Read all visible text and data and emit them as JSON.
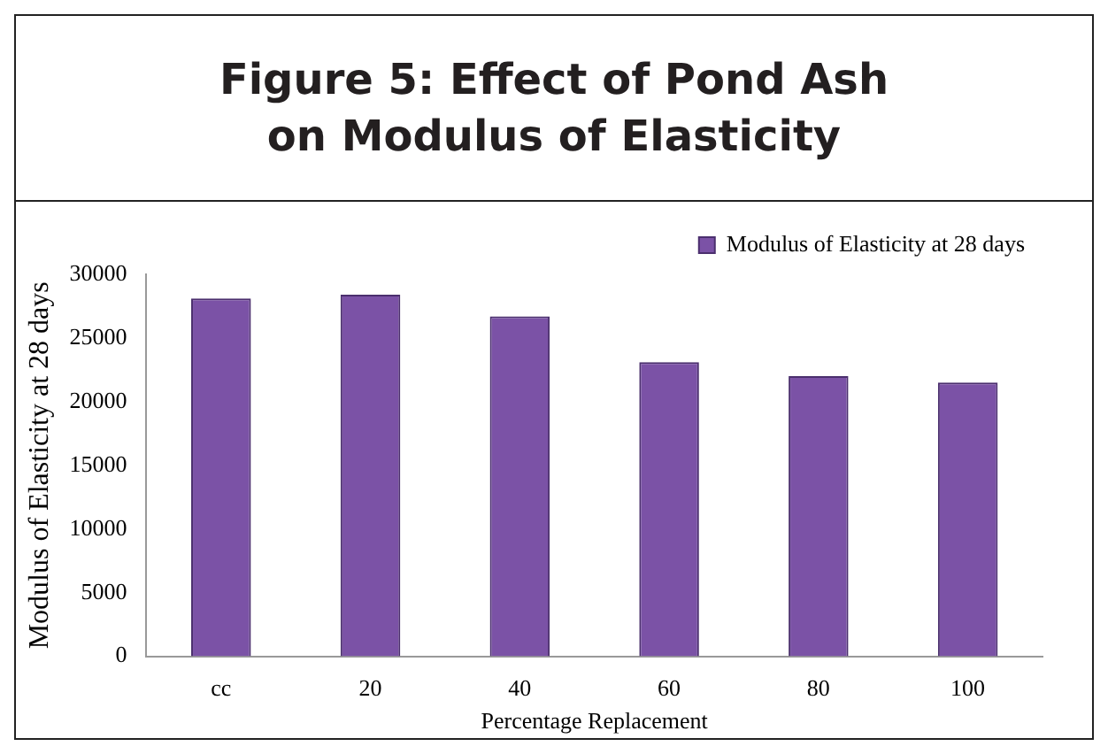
{
  "chart_data": {
    "type": "bar",
    "title": "Figure 5: Effect of Pond Ash\non Modulus of Elasticity",
    "xlabel": "Percentage Replacement",
    "ylabel": "Modulus of Elasticity at 28 days",
    "categories": [
      "cc",
      "20",
      "40",
      "60",
      "80",
      "100"
    ],
    "series": [
      {
        "name": "Modulus of Elasticity at 28 days",
        "color": "#7b52a6",
        "values": [
          28100,
          28400,
          26700,
          23100,
          22000,
          21500
        ]
      }
    ],
    "ylim": [
      0,
      30000
    ],
    "yticks": [
      0,
      5000,
      10000,
      15000,
      20000,
      25000,
      30000
    ],
    "grid": false,
    "legend": "top right"
  }
}
